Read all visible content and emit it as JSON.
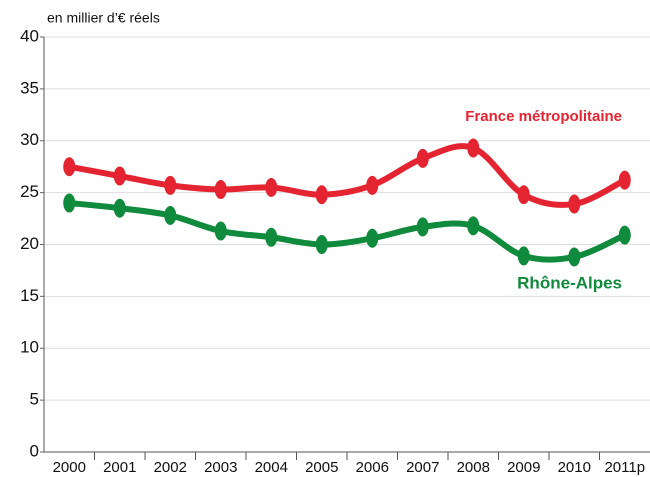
{
  "chart_data": {
    "type": "line",
    "y_label": "en millier d’€ réels",
    "categories": [
      "2000",
      "2001",
      "2002",
      "2003",
      "2004",
      "2005",
      "2006",
      "2007",
      "2008",
      "2009",
      "2010",
      "2011p"
    ],
    "series": [
      {
        "name": "France métropolitaine",
        "color": "#e52431",
        "values": [
          27.5,
          26.6,
          25.7,
          25.3,
          25.5,
          24.8,
          25.7,
          28.3,
          29.3,
          24.8,
          23.9,
          26.2
        ]
      },
      {
        "name": "Rhône-Alpes",
        "color": "#108a3c",
        "values": [
          24.0,
          23.5,
          22.8,
          21.3,
          20.7,
          20.0,
          20.6,
          21.7,
          21.8,
          18.9,
          18.8,
          20.9
        ]
      }
    ],
    "ylim": [
      0,
      40
    ],
    "yticks": [
      0,
      5,
      10,
      15,
      20,
      25,
      30,
      35,
      40
    ],
    "grid": true
  }
}
